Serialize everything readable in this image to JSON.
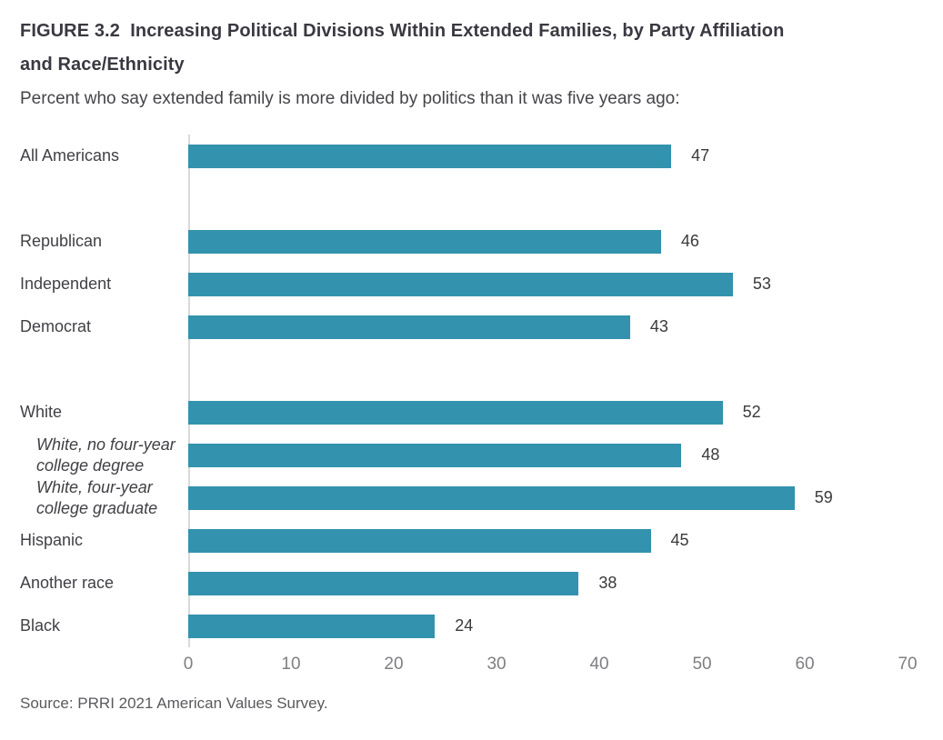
{
  "header": {
    "title": "FIGURE 3.2  Increasing Political Divisions Within Extended Families, by Party Affiliation\nand Race/Ethnicity",
    "subtitle": "Percent who say extended family is more divided by politics than it was five years ago:"
  },
  "chart_data": {
    "type": "bar",
    "orientation": "horizontal",
    "title": "FIGURE 3.2  Increasing Political Divisions Within Extended Families, by Party Affiliation and Race/Ethnicity",
    "subtitle": "Percent who say extended family is more divided by politics than it was five years ago:",
    "bar_color": "#3392ad",
    "axis_line_color": "#d9d9d9",
    "grid": false,
    "xlim": [
      0,
      71.5
    ],
    "xticks": [
      0,
      10,
      20,
      30,
      40,
      50,
      60,
      70
    ],
    "categories": [
      "All Americans",
      "Republican",
      "Independent",
      "Democrat",
      "White",
      "White, no four-year college degree",
      "White, four-year college graduate",
      "Hispanic",
      "Another race",
      "Black"
    ],
    "values": [
      47,
      46,
      53,
      43,
      52,
      48,
      59,
      45,
      38,
      24
    ],
    "rows": [
      {
        "label": "All Americans",
        "value": 47
      },
      {
        "spacer": true
      },
      {
        "label": "Republican",
        "value": 46
      },
      {
        "label": "Independent",
        "value": 53
      },
      {
        "label": "Democrat",
        "value": 43
      },
      {
        "spacer": true
      },
      {
        "label": "White",
        "value": 52
      },
      {
        "label": "White, no four-year\ncollege degree",
        "value": 48,
        "italic": true
      },
      {
        "label": "White, four-year\ncollege graduate",
        "value": 59,
        "italic": true
      },
      {
        "label": "Hispanic",
        "value": 45
      },
      {
        "label": "Another race",
        "value": 38
      },
      {
        "label": "Black",
        "value": 24
      }
    ]
  },
  "footer": {
    "source": "Source: PRRI 2021 American Values Survey."
  }
}
